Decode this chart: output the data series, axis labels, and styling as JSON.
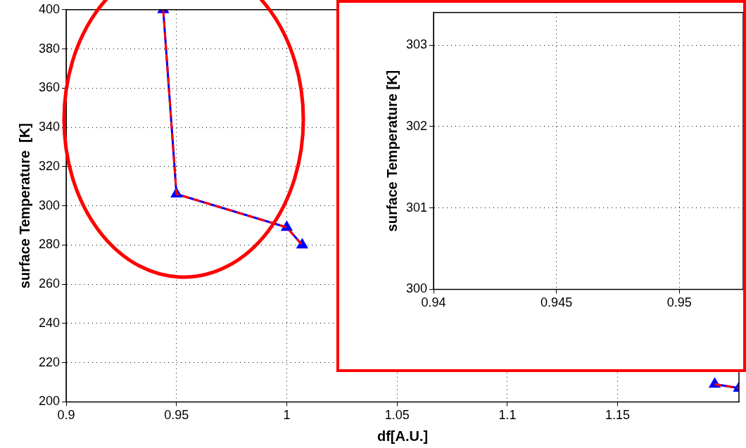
{
  "chart_data": [
    {
      "type": "line",
      "xlabel": "df[A.U.]",
      "ylabel": "surface Temperature  [K]",
      "xlim": [
        0.9,
        1.205
      ],
      "ylim": [
        200,
        400
      ],
      "xticks": [
        0.9,
        0.95,
        1,
        1.05,
        1.1,
        1.15
      ],
      "yticks": [
        200,
        220,
        240,
        260,
        280,
        300,
        320,
        340,
        360,
        380,
        400
      ],
      "grid": true,
      "series": [
        {
          "color": "#0000ff",
          "marker": "triangle",
          "line_style": "solid",
          "x": [
            0.944,
            0.95,
            1.0,
            1.007,
            1.1,
            1.194,
            1.205
          ],
          "values": [
            400,
            306,
            289,
            280,
            null,
            209,
            207
          ]
        },
        {
          "color": "#ff0000",
          "marker": "none",
          "line_style": "dashed",
          "x": [
            0.944,
            0.95,
            1.0,
            1.007,
            1.1,
            1.194,
            1.205
          ],
          "values": [
            400,
            306,
            289,
            280,
            null,
            209,
            207
          ]
        }
      ]
    },
    {
      "type": "line",
      "ylabel": "surface Temperature [K]",
      "xlim": [
        0.94,
        0.9526
      ],
      "ylim": [
        300,
        303.4
      ],
      "xticks": [
        0.94,
        0.945,
        0.95
      ],
      "yticks": [
        300,
        301,
        302,
        303
      ],
      "grid": true
    }
  ]
}
